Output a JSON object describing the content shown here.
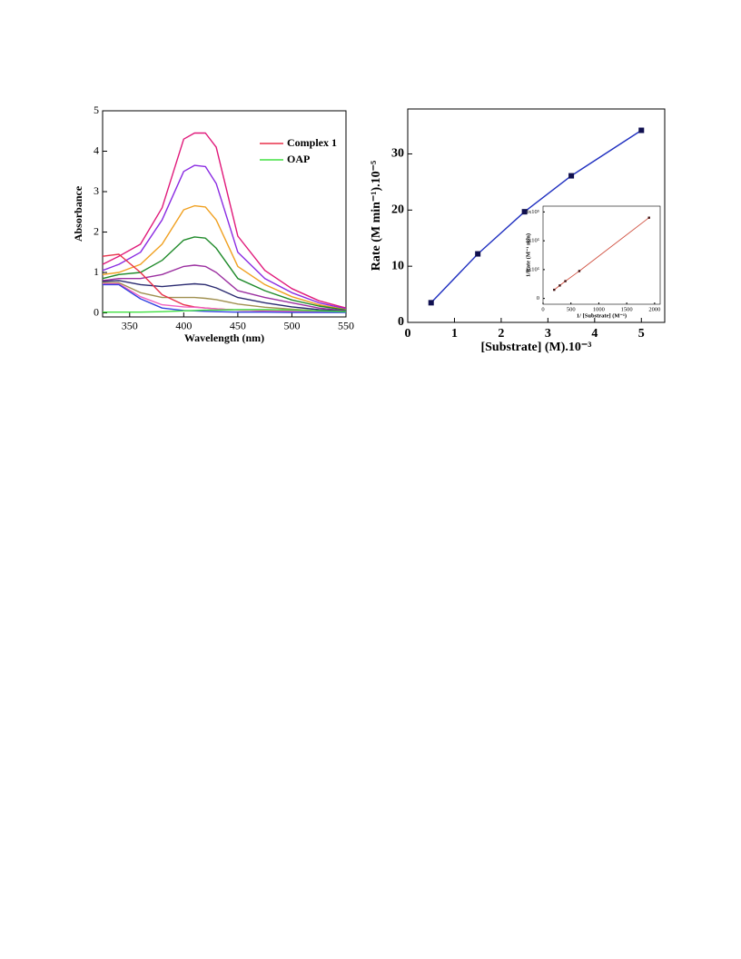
{
  "chart_data": [
    {
      "type": "line",
      "x_label": "Wavelength (nm)",
      "y_label": "Absorbance",
      "x": [
        325,
        340,
        360,
        380,
        400,
        410,
        420,
        430,
        450,
        475,
        500,
        525,
        550
      ],
      "xlim": [
        325,
        550
      ],
      "xticks": [
        350,
        400,
        450,
        500,
        550
      ],
      "ylim": [
        -0.1,
        5
      ],
      "yticks": [
        0,
        1,
        2,
        3,
        4,
        5
      ],
      "legend": "upper right",
      "series": [
        {
          "color": "#e0197a",
          "values": [
            1.2,
            1.4,
            1.7,
            2.6,
            4.3,
            4.45,
            4.45,
            4.1,
            1.9,
            1.05,
            0.6,
            0.3,
            0.12
          ]
        },
        {
          "color": "#8a2be2",
          "values": [
            1.05,
            1.2,
            1.5,
            2.3,
            3.5,
            3.65,
            3.62,
            3.2,
            1.5,
            0.85,
            0.5,
            0.25,
            0.1
          ]
        },
        {
          "color": "#f0a020",
          "values": [
            0.95,
            1.0,
            1.2,
            1.7,
            2.55,
            2.65,
            2.62,
            2.3,
            1.15,
            0.7,
            0.4,
            0.2,
            0.08
          ]
        },
        {
          "color": "#1f8a2a",
          "values": [
            0.85,
            0.95,
            1.0,
            1.3,
            1.8,
            1.88,
            1.85,
            1.6,
            0.85,
            0.55,
            0.32,
            0.17,
            0.07
          ]
        },
        {
          "color": "#9b2fa0",
          "values": [
            0.8,
            0.85,
            0.85,
            0.95,
            1.15,
            1.18,
            1.15,
            1.0,
            0.55,
            0.38,
            0.25,
            0.12,
            0.05
          ]
        },
        {
          "color": "#2a2a70",
          "values": [
            0.78,
            0.8,
            0.7,
            0.65,
            0.7,
            0.72,
            0.7,
            0.62,
            0.38,
            0.25,
            0.15,
            0.08,
            0.04
          ]
        },
        {
          "color": "#a09050",
          "values": [
            0.75,
            0.75,
            0.5,
            0.38,
            0.38,
            0.38,
            0.36,
            0.33,
            0.22,
            0.14,
            0.09,
            0.05,
            0.03
          ]
        },
        {
          "name": "Complex 1",
          "color": "#e8304a",
          "values": [
            1.4,
            1.45,
            1.0,
            0.45,
            0.2,
            0.15,
            0.12,
            0.1,
            0.07,
            0.05,
            0.04,
            0.03,
            0.02
          ]
        },
        {
          "color": "#f060c0",
          "values": [
            0.72,
            0.72,
            0.4,
            0.2,
            0.15,
            0.14,
            0.12,
            0.1,
            0.07,
            0.05,
            0.04,
            0.03,
            0.02
          ]
        },
        {
          "color": "#3040e0",
          "values": [
            0.7,
            0.7,
            0.35,
            0.12,
            0.06,
            0.05,
            0.04,
            0.03,
            0.02,
            0.02,
            0.01,
            0.01,
            0.01
          ]
        },
        {
          "name": "OAP",
          "color": "#40e040",
          "values": [
            0.02,
            0.02,
            0.02,
            0.03,
            0.05,
            0.06,
            0.07,
            0.07,
            0.08,
            0.08,
            0.07,
            0.05,
            0.03
          ]
        }
      ]
    },
    {
      "type": "line",
      "markers": true,
      "x_label": "[Substrate] (M).10⁻³",
      "y_label": "Rate (M min⁻¹).10⁻⁵",
      "x": [
        0.5,
        1.5,
        2.5,
        3.5,
        5
      ],
      "xlim": [
        0,
        5.5
      ],
      "xticks": [
        0,
        1,
        2,
        3,
        4,
        5
      ],
      "ylim": [
        0,
        38
      ],
      "yticks": [
        0,
        10,
        20,
        30
      ],
      "series": [
        {
          "color": "#2030c0",
          "marker_color": "#101050",
          "values": [
            3.5,
            12.2,
            19.7,
            26.1,
            34.2
          ]
        }
      ]
    },
    {
      "type": "line",
      "markers": true,
      "x_label": "1/ [Substrate] (M⁻¹)",
      "y_label": "1/Rate (M⁻¹ min)",
      "x": [
        200,
        300,
        400,
        650,
        1900
      ],
      "xlim": [
        0,
        2100
      ],
      "xticks": [
        0,
        500,
        1000,
        1500,
        2000
      ],
      "ylim": [
        -20000,
        320000
      ],
      "yticks": [
        0,
        {
          "value": 100000,
          "label": "1x10⁵"
        },
        {
          "value": 200000,
          "label": "2x10⁵"
        },
        {
          "value": 300000,
          "label": "3x10⁵"
        }
      ],
      "series": [
        {
          "color": "#d05040",
          "marker_color": "#401010",
          "values": [
            30000,
            45000,
            60000,
            95000,
            280000
          ]
        }
      ]
    }
  ]
}
